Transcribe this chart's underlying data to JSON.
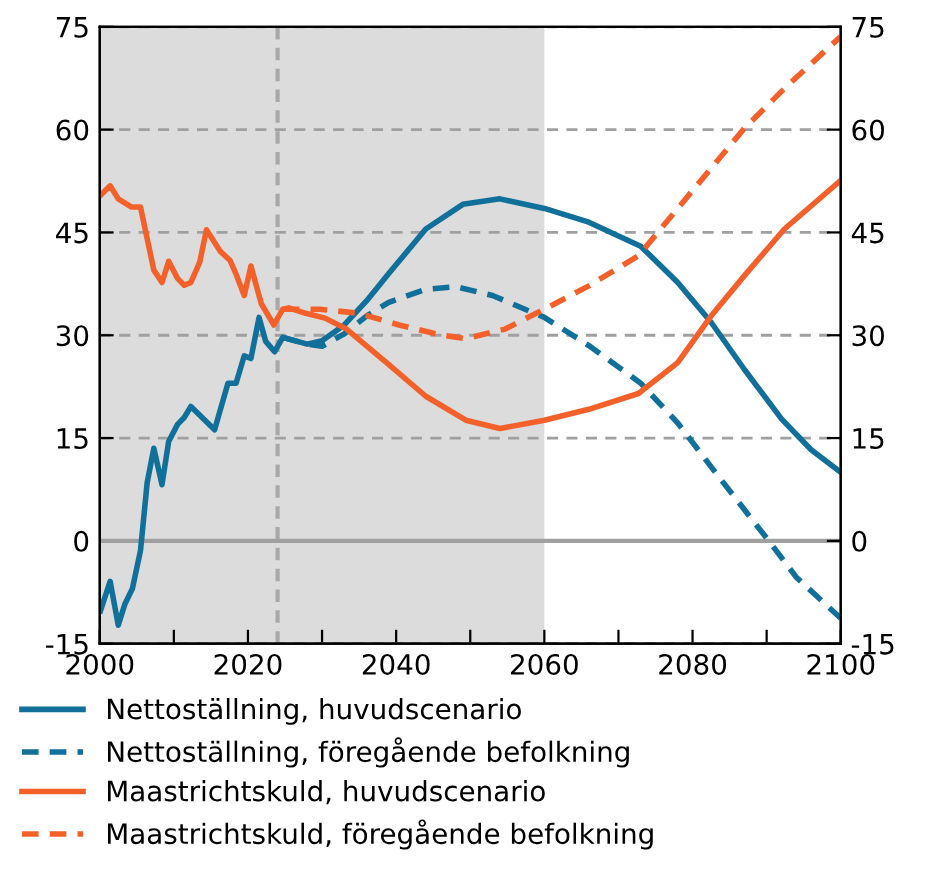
{
  "chart_data": {
    "type": "line",
    "x": [
      2000.1,
      2001.4,
      2002.5,
      2003.4,
      2004.4,
      2005.5,
      2006.4,
      2007.3,
      2008.4,
      2009.3,
      2010.5,
      2011.4,
      2012.3,
      2015.5,
      2017.3,
      2018.4,
      2019.5,
      2020.4,
      2021.5,
      2022.4,
      2023.6,
      2024.7,
      2028,
      2030,
      2033,
      2036,
      2039,
      2044,
      2049,
      2054,
      2060,
      2066,
      2073,
      2078,
      2082.5,
      2087,
      2092,
      2096,
      2100
    ],
    "series": [
      {
        "name": "Nettoställning, huvudscenario",
        "color": "#11709a",
        "line_style": "solid",
        "values": [
          -10.2,
          -5.9,
          -12.3,
          -9.2,
          -7,
          -1.4,
          8.5,
          13.5,
          8.2,
          14.5,
          17,
          18,
          19.6,
          16.2,
          23,
          23,
          27,
          26.6,
          32.6,
          29.1,
          27.6,
          29.7,
          28.7,
          29.2,
          31.5,
          35,
          39,
          45.5,
          49.1,
          49.9,
          48.5,
          46.5,
          43,
          37.7,
          31.9,
          25,
          17.8,
          13.3,
          10
        ]
      },
      {
        "name": "Nettoställning, föregående befolkning",
        "color": "#11709a",
        "line_style": "dashed",
        "x": [
          2024.7,
          2028,
          2030,
          2033,
          2036,
          2039,
          2044,
          2048,
          2053,
          2060,
          2066,
          2073,
          2078,
          2083.5,
          2090,
          2094,
          2100
        ],
        "values": [
          29.7,
          28.7,
          28.4,
          30.2,
          32.8,
          34.8,
          36.7,
          37.1,
          35.8,
          32.6,
          28.5,
          23,
          17.2,
          9.4,
          0.4,
          -5.3,
          -11.3
        ]
      },
      {
        "name": "Maastrichtskuld, huvudscenario",
        "color": "#f4602a",
        "line_style": "solid",
        "x": [
          2000.1,
          2001.4,
          2002.5,
          2004.3,
          2005.5,
          2007.3,
          2008.4,
          2009.3,
          2010.5,
          2011.4,
          2012.3,
          2013.5,
          2014.4,
          2016.3,
          2017.6,
          2018.4,
          2019.5,
          2020.4,
          2021.8,
          2023.5,
          2024.7,
          2025.5,
          2027.8,
          2030.4,
          2033.3,
          2038.7,
          2044,
          2049.4,
          2054,
          2060,
          2066,
          2072.7,
          2078,
          2082.5,
          2087,
          2092.4,
          2100
        ],
        "values": [
          50.4,
          51.8,
          49.9,
          48.7,
          48.7,
          39.5,
          37.7,
          40.8,
          38.3,
          37.3,
          37.7,
          40.7,
          45.4,
          42.2,
          40.9,
          38.9,
          35.8,
          40.1,
          34.6,
          31.5,
          33.8,
          34,
          33.2,
          32.5,
          30.9,
          26,
          21.1,
          17.6,
          16.4,
          17.6,
          19.2,
          21.5,
          26,
          32.8,
          38.7,
          45.5,
          52.6
        ]
      },
      {
        "name": "Maastrichtskuld, föregående befolkning",
        "color": "#f4602a",
        "line_style": "dashed",
        "x": [
          2024.7,
          2029.7,
          2035,
          2040.4,
          2045.8,
          2049.4,
          2054.7,
          2060,
          2066,
          2072.7,
          2078,
          2087,
          2092.4,
          2100
        ],
        "values": [
          33.8,
          33.8,
          33.2,
          31.5,
          30.1,
          29.5,
          30.9,
          33.8,
          37.2,
          41.6,
          48.5,
          60.2,
          66,
          73.6
        ]
      }
    ],
    "xlim": [
      2000,
      2100
    ],
    "xticks": [
      2000,
      {
        "value": 2010,
        "label": null
      },
      2020,
      {
        "value": 2030,
        "label": null
      },
      2040,
      {
        "value": 2050,
        "label": null
      },
      2060,
      {
        "value": 2070,
        "label": null
      },
      2080,
      {
        "value": 2090,
        "label": null
      },
      2100
    ],
    "ylim": [
      -15,
      75
    ],
    "yticks": [
      -15,
      0,
      15,
      30,
      45,
      60,
      75
    ],
    "y2lim": [
      -15,
      75
    ],
    "y2ticks": [
      -15,
      0,
      15,
      30,
      45,
      60,
      75
    ],
    "bands": [
      {
        "axis": "x",
        "from": 2000,
        "to": 2060,
        "color": "#dcdcdc"
      }
    ],
    "ref_lines": [
      {
        "axis": "x",
        "value": 2024,
        "color": "#a8a8a8",
        "line_style": "dashed"
      },
      {
        "axis": "y",
        "value": 0,
        "color": "#a0a0a0",
        "line_style": "solid"
      }
    ],
    "grid": "y",
    "legend": "bottom"
  }
}
